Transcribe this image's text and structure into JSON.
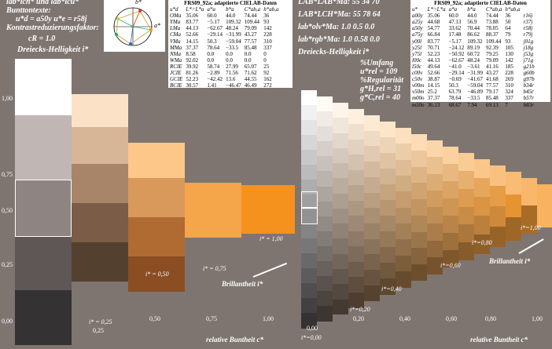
{
  "left_header": {
    "line1": "lab*lch* und lab*lcu*",
    "line2": "Bunttontexte:",
    "line3": "u*d = a50y   u*e = r58j",
    "line4": "Kontrastreduzierungsfaktor:",
    "line5": "cR = 1.0",
    "line6": "Dreiecks-Helligkeit i*"
  },
  "hue_circle": {
    "label_b": "b*",
    "label_a": "a*"
  },
  "table_left": {
    "title": "FRS09_92a; adaptierte CIELAB-Daten",
    "headers": [
      "u*d",
      "L*=L*a",
      "a*a",
      "b*a",
      "C*ab,a",
      "h*ab,a"
    ],
    "rows": [
      [
        "OMa",
        "35.06",
        "60.0",
        "44.0",
        "74.44",
        "36"
      ],
      [
        "YMa",
        "83.77",
        "−5.17",
        "109.32",
        "109.44",
        "93"
      ],
      [
        "LMa",
        "44.13",
        "−62.67",
        "48.24",
        "79.09",
        "142"
      ],
      [
        "CMa",
        "52.66",
        "−29.14",
        "−31.99",
        "43.27",
        "228"
      ],
      [
        "VMa",
        "14.15",
        "50.3",
        "−59.04",
        "77.57",
        "310"
      ],
      [
        "MMa",
        "37.37",
        "78.64",
        "−33.5",
        "85.48",
        "337"
      ],
      [
        "NMa",
        "8.58",
        "0.0",
        "0.0",
        "0.0",
        "0"
      ],
      [
        "WMa",
        "92.02",
        "0.0",
        "0.0",
        "0.0",
        "0"
      ],
      [
        "RCIE",
        "39.92",
        "58.74",
        "27.99",
        "65.07",
        "25"
      ],
      [
        "JCIE",
        "81.26",
        "−2.89",
        "71.56",
        "71.62",
        "92"
      ],
      [
        "GCIE",
        "52.23",
        "−42.42",
        "13.6",
        "44.55",
        "162"
      ],
      [
        "BCIE",
        "30.57",
        "1.41",
        "−46.47",
        "46.49",
        "272"
      ]
    ]
  },
  "right_header": {
    "line1": "LAB*LAB*Ma: 55  34  70",
    "line2": "LAB*LCH*Ma: 55  78  64",
    "line3": "lab*olv*Ma: 1.0  0.5  0.0",
    "line4": "lab*rgb*Ma: 1.0  0.58  0.0",
    "line5": "Dreiecks-Helligkeit i*"
  },
  "stats": {
    "umfang": "%Umfang",
    "u_val": "u*rel = 109",
    "regular": "%Regularität",
    "g_h": "g*H,rel = 31",
    "g_c": "g*C,rel = 40"
  },
  "table_right": {
    "title": "FRS09_92a; adaptierte CIELAB-Daten",
    "headers": [
      "u*",
      "L*=L*a",
      "a*a",
      "b*a",
      "C*ab,a",
      "h*ab,a"
    ],
    "rows": [
      [
        "a00y",
        "35.06",
        "60.0",
        "44.0",
        "74.44",
        "36",
        "r16j"
      ],
      [
        "a25y",
        "44.68",
        "47.13",
        "56.9",
        "73.88",
        "50",
        "r37j"
      ],
      [
        "a50y",
        "54.77",
        "33.62",
        "70.44",
        "78.05",
        "64",
        "r58j"
      ],
      [
        "a75y",
        "66.84",
        "17.48",
        "86.62",
        "88.37",
        "79",
        "r79j"
      ],
      [
        "y00l",
        "83.77",
        "−5.17",
        "109.32",
        "109.44",
        "93",
        "j01g"
      ],
      [
        "y25l",
        "70.71",
        "−24.12",
        "89.19",
        "92.39",
        "105",
        "j18g"
      ],
      [
        "y75l",
        "52.23",
        "−50.92",
        "60.72",
        "79.25",
        "130",
        "j53g"
      ],
      [
        "l00c",
        "44.13",
        "−62.67",
        "48.24",
        "79.09",
        "142",
        "j71g"
      ],
      [
        "l50c",
        "49.64",
        "−41.0",
        "−3.61",
        "41.16",
        "185",
        "g21b"
      ],
      [
        "c00v",
        "52.66",
        "−29.14",
        "−31.99",
        "43.27",
        "228",
        "g60b"
      ],
      [
        "c50v",
        "38.87",
        "−0.69",
        "−41.67",
        "41.68",
        "269",
        "g97b"
      ],
      [
        "v00m",
        "14.15",
        "50.3",
        "−59.04",
        "77.57",
        "310",
        "b34r"
      ],
      [
        "v50m",
        "25.2",
        "63.79",
        "−46.89",
        "79.17",
        "324",
        "b45r"
      ],
      [
        "m00o",
        "37.37",
        "78.64",
        "−33.5",
        "85.48",
        "337",
        "b57r"
      ],
      [
        "m50o",
        "36.13",
        "68.67",
        "7.94",
        "69.13",
        "7",
        "b83r"
      ]
    ]
  },
  "left_axis": {
    "y_ticks": [
      "1,00",
      "0,75",
      "0,50",
      "0,25",
      "0,00"
    ],
    "x_ticks": [
      "0,25",
      "0,50",
      "0,75",
      "1,00"
    ],
    "x_label": "relative Buntheit c*",
    "i_labels": [
      "i* = 0,25",
      "i* = 0,50",
      "i* = 0,75",
      "i* = 1,00"
    ],
    "brill": "Brillantheit i*"
  },
  "right_axis": {
    "x_ticks": [
      "0,00",
      "0,20",
      "0,40",
      "0,60",
      "0,80",
      "1,00"
    ],
    "x_label": "relative Buntheit c*",
    "i_labels": [
      "i*=0,00",
      "i*=0,20",
      "i*=0,40",
      "i*=0,60",
      "i*=0,80",
      "i*=1,00"
    ],
    "brill": "Brillantheit i*"
  },
  "colors": {
    "background": "#7e7571",
    "accent": "#f5921e"
  }
}
